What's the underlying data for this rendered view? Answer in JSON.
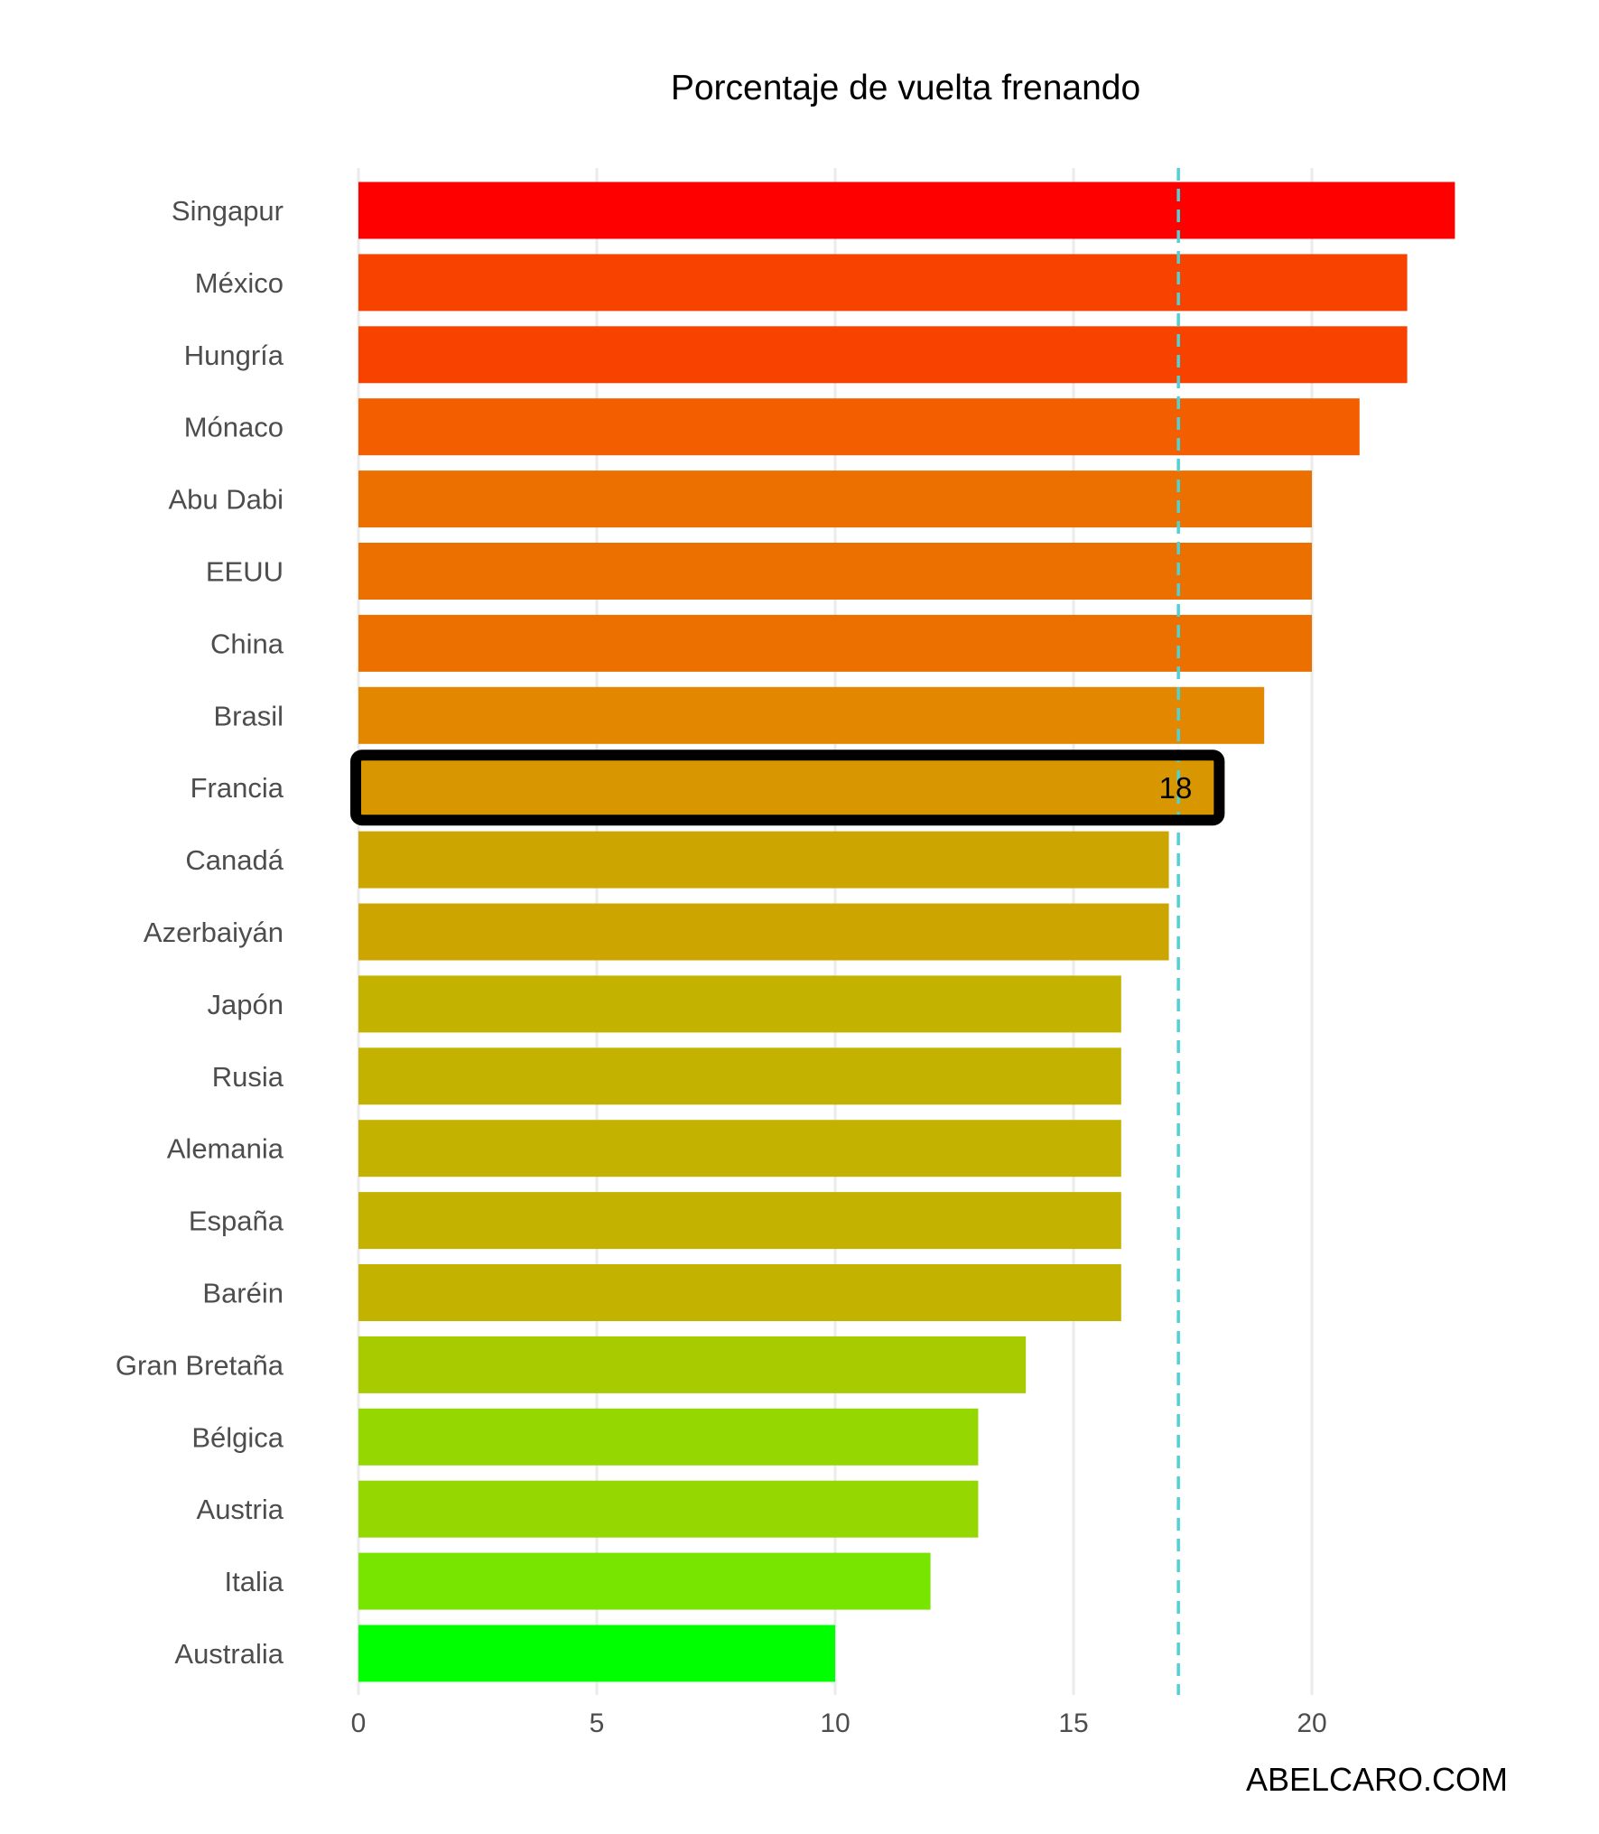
{
  "chart_data": {
    "type": "bar",
    "orientation": "horizontal",
    "title": "Porcentaje de vuelta frenando",
    "xlabel": "",
    "ylabel": "",
    "xlim": [
      0,
      24
    ],
    "x_ticks": [
      0,
      5,
      10,
      15,
      20
    ],
    "grid": "vertical",
    "categories": [
      "Singapur",
      "México",
      "Hungría",
      "Mónaco",
      "Abu Dabi",
      "EEUU",
      "China",
      "Brasil",
      "Francia",
      "Canadá",
      "Azerbaiyán",
      "Japón",
      "Rusia",
      "Alemania",
      "España",
      "Baréin",
      "Gran Bretaña",
      "Bélgica",
      "Austria",
      "Italia",
      "Australia"
    ],
    "values": [
      23,
      22,
      22,
      21,
      20,
      20,
      20,
      19,
      18,
      17,
      17,
      16,
      16,
      16,
      16,
      16,
      14,
      13,
      13,
      12,
      10
    ],
    "colors": [
      "#ff0000",
      "#f84200",
      "#f84200",
      "#f25e00",
      "#ec7000",
      "#ec7000",
      "#ec7000",
      "#e38600",
      "#d89700",
      "#cda500",
      "#cda500",
      "#c3b200",
      "#c3b200",
      "#c3b200",
      "#c3b200",
      "#c3b200",
      "#a8cb00",
      "#95d700",
      "#95d700",
      "#78e500",
      "#00ff00"
    ],
    "highlight": {
      "category": "Francia",
      "label": "18",
      "outline_color": "#000000"
    },
    "reference_line": {
      "value": 17.2,
      "color": "#4fd2d6",
      "style": "dashed"
    }
  },
  "watermark": "ABELCARO.COM"
}
